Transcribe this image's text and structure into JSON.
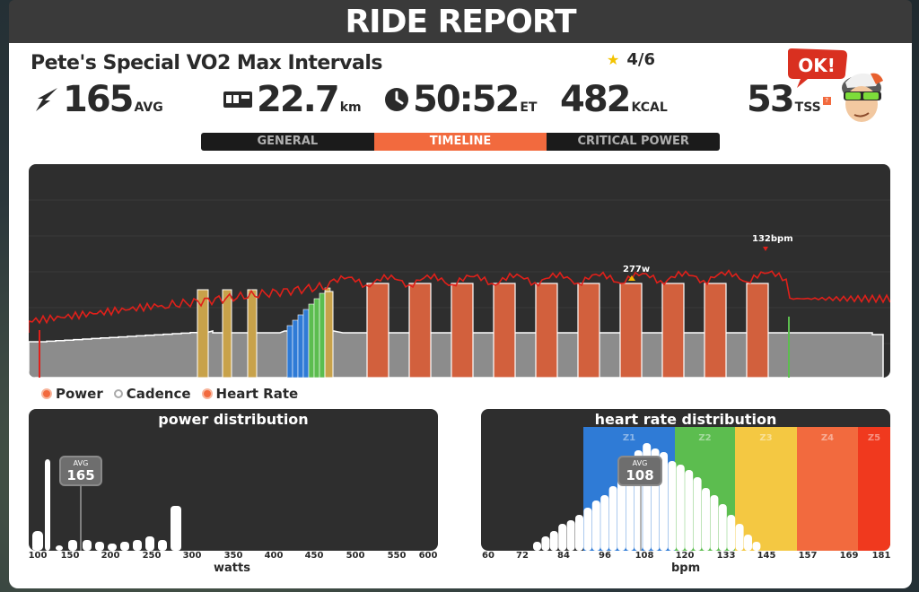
{
  "header": {
    "title": "RIDE REPORT"
  },
  "workout": {
    "name": "Pete's Special VO2 Max Intervals",
    "rating": "4/6"
  },
  "stats": {
    "power": {
      "value": "165",
      "unit": "AVG"
    },
    "distance": {
      "value": "22.7",
      "unit": "km"
    },
    "time": {
      "value": "50:52",
      "unit": "ET"
    },
    "energy": {
      "value": "482",
      "unit": "KCAL"
    },
    "tss": {
      "value": "53",
      "unit": "TSS",
      "help": "?"
    }
  },
  "mascot": {
    "speech": "OK!"
  },
  "tabs": [
    {
      "label": "GENERAL",
      "active": false
    },
    {
      "label": "TIMELINE",
      "active": true
    },
    {
      "label": "CRITICAL POWER",
      "active": false
    }
  ],
  "timeline": {
    "peak_power_label": "277w",
    "peak_hr_label": "132bpm",
    "colors": {
      "power_fill": "#8c8c8c",
      "heart_rate": "#e0201a",
      "cadence": "#ffffff",
      "interval": "#d2603d",
      "z2": "#5cbd4f",
      "z1": "#2f7bd6",
      "warmup": "#c8a24a"
    }
  },
  "legend": [
    {
      "label": "Power",
      "style": "orange"
    },
    {
      "label": "Cadence",
      "style": "white"
    },
    {
      "label": "Heart Rate",
      "style": "orange"
    }
  ],
  "power_distribution": {
    "title": "power distribution",
    "avg_label": "AVG",
    "avg_value": "165",
    "x_ticks": [
      "100",
      "150",
      "200",
      "250",
      "300",
      "350",
      "400",
      "450",
      "500",
      "550",
      "600"
    ],
    "xlabel": "watts"
  },
  "hr_distribution": {
    "title": "heart rate distribution",
    "avg_label": "AVG",
    "avg_value": "108",
    "zones": [
      {
        "label": "Z1",
        "color": "#2f7bd6"
      },
      {
        "label": "Z2",
        "color": "#5cbd4f"
      },
      {
        "label": "Z3",
        "color": "#f4c842"
      },
      {
        "label": "Z4",
        "color": "#f26a3e"
      },
      {
        "label": "Z5",
        "color": "#f0391e"
      }
    ],
    "x_ticks": [
      "60",
      "72",
      "84",
      "96",
      "108",
      "120",
      "133",
      "145",
      "157",
      "169",
      "181"
    ],
    "xlabel": "bpm"
  }
}
